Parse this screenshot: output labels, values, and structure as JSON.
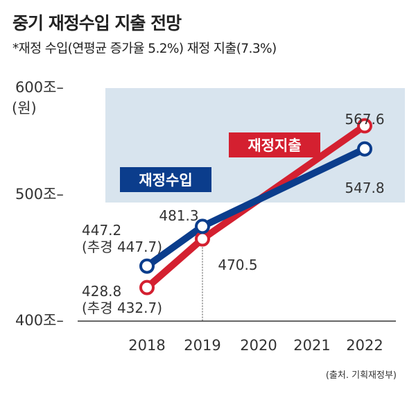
{
  "title": "중기 재정수입 지출 전망",
  "subtitle": "*재정 수입(연평균 증가율 5.2%) 재정 지출(7.3%)",
  "source": "(출처. 기획재정부)",
  "colors": {
    "revenue": "#0b3d8c",
    "expenditure": "#d42030",
    "band": "#d8e4ee",
    "axis": "#333333"
  },
  "chart_data": {
    "type": "line",
    "categories": [
      "2018",
      "2019",
      "2020",
      "2021",
      "2022"
    ],
    "y_ticks": [
      {
        "label": "400조–",
        "value": 400
      },
      {
        "label": "500조–",
        "value": 500
      },
      {
        "label": "600조–",
        "value": 600
      }
    ],
    "ylabel": "(원)",
    "ylim": [
      400,
      600
    ],
    "grid": false,
    "series": [
      {
        "name": "재정수입",
        "points": [
          {
            "x": "2018",
            "y": 447.2
          },
          {
            "x": "2019",
            "y": 481.3
          },
          {
            "x": "2022",
            "y": 547.8
          }
        ],
        "labels": [
          {
            "text": "447.2",
            "sub": "(추경 447.7)"
          },
          {
            "text": "481.3",
            "sub": ""
          },
          {
            "text": "547.8",
            "sub": ""
          }
        ]
      },
      {
        "name": "재정지출",
        "points": [
          {
            "x": "2018",
            "y": 428.8
          },
          {
            "x": "2019",
            "y": 470.5
          },
          {
            "x": "2022",
            "y": 567.6
          }
        ],
        "labels": [
          {
            "text": "428.8",
            "sub": "(추경 432.7)"
          },
          {
            "text": "470.5",
            "sub": ""
          },
          {
            "text": "567.6",
            "sub": ""
          }
        ]
      }
    ]
  }
}
